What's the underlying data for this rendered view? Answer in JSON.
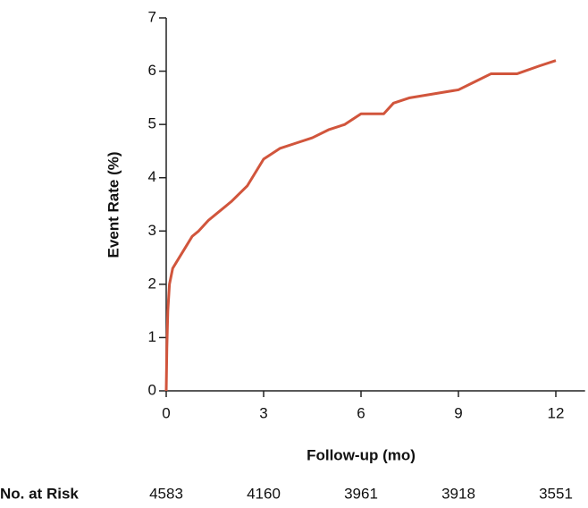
{
  "chart_data": {
    "type": "line",
    "x_label": "Follow-up (mo)",
    "y_label": "Event Rate (%)",
    "x": [
      0,
      0.02,
      0.05,
      0.1,
      0.2,
      0.4,
      0.6,
      0.8,
      1.0,
      1.3,
      1.6,
      2,
      2.5,
      3,
      3.5,
      4,
      4.5,
      5,
      5.5,
      6,
      6.7,
      7,
      7.5,
      8,
      8.5,
      9,
      9.5,
      10,
      10.8,
      11.5,
      12
    ],
    "series": [
      {
        "color": "#d1553c",
        "values": [
          0,
          0.8,
          1.5,
          2.0,
          2.3,
          2.5,
          2.7,
          2.9,
          3.0,
          3.2,
          3.35,
          3.55,
          3.85,
          4.35,
          4.55,
          4.65,
          4.75,
          4.9,
          5.0,
          5.2,
          5.2,
          5.4,
          5.5,
          5.55,
          5.6,
          5.65,
          5.8,
          5.95,
          5.95,
          6.1,
          6.2
        ]
      }
    ],
    "xlim": [
      0,
      12.9
    ],
    "ylim": [
      0,
      7
    ],
    "xticks": [
      0,
      3,
      6,
      9,
      12
    ],
    "yticks": [
      0,
      1,
      2,
      3,
      4,
      5,
      6,
      7
    ],
    "at_risk": {
      "label": "No. at Risk",
      "values": [
        4583,
        4160,
        3961,
        3918,
        3551
      ]
    }
  }
}
